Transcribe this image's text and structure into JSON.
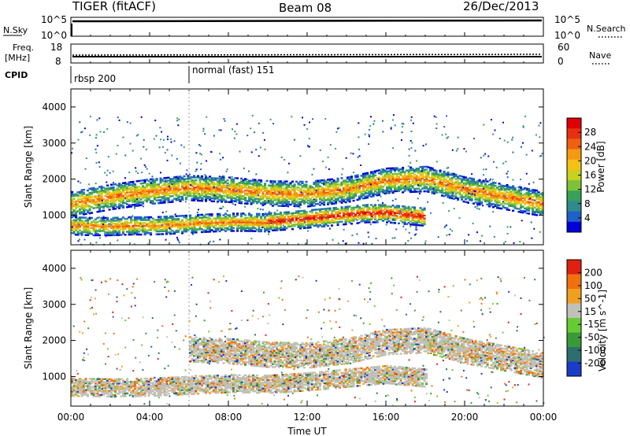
{
  "header": {
    "radar": "TIGER (fitACF)",
    "beam": "Beam 08",
    "date": "26/Dec/2013"
  },
  "strip_labels": {
    "nsky": "N.Sky",
    "nsearch": "N.Search",
    "freq_line1": "Freq.",
    "freq_line2": "[MHz]",
    "nave": "Nave",
    "cpid": "CPID",
    "nsky_ticks": [
      "10^5",
      "10^0"
    ],
    "freq_ticks": [
      "18",
      "8"
    ],
    "nave_ticks": [
      "60",
      "0"
    ]
  },
  "cpid_segments": [
    {
      "label": "rbsp 200",
      "start_hour": 0,
      "end_hour": 6
    },
    {
      "label": "normal (fast) 151",
      "start_hour": 6,
      "end_hour": 24
    }
  ],
  "axes": {
    "xlabel": "Time UT",
    "ylabel": "Slant Range [km]",
    "x_ticks": [
      "00:00",
      "04:00",
      "08:00",
      "12:00",
      "16:00",
      "20:00",
      "00:00"
    ],
    "x_tick_hours": [
      0,
      4,
      8,
      12,
      16,
      20,
      24
    ],
    "y_ticks": [
      1000,
      2000,
      3000,
      4000
    ],
    "xlim": [
      0,
      24
    ],
    "ylim": [
      180,
      4500
    ]
  },
  "chart_data": [
    {
      "type": "heatmap",
      "panel": "power",
      "colorbar_label": "Power [dB]",
      "colorbar_ticks": [
        "28",
        "24",
        "20",
        "16",
        "12",
        "8",
        "4"
      ],
      "colorbar_colors": [
        "#0000d8",
        "#1f5fc8",
        "#2e8b8b",
        "#3aa05a",
        "#7cc23a",
        "#c8d020",
        "#f5c016",
        "#f59a10",
        "#f06010",
        "#e83010",
        "#e00000"
      ],
      "xlim": [
        0,
        24
      ],
      "ylim": [
        180,
        4500
      ],
      "echo_bands": [
        {
          "name": "lower band",
          "x": [
            0,
            1,
            2,
            3,
            4,
            5,
            6,
            7,
            8,
            9,
            10
          ],
          "y": [
            700,
            680,
            680,
            700,
            700,
            720,
            750,
            780,
            800,
            800,
            780
          ],
          "width_km": 250,
          "peak_db": 24
        },
        {
          "name": "upper band",
          "x": [
            0,
            2,
            4,
            6,
            8,
            10,
            12,
            14,
            16,
            18,
            20,
            22,
            24
          ],
          "y": [
            1300,
            1500,
            1650,
            1750,
            1700,
            1600,
            1580,
            1700,
            1950,
            2000,
            1700,
            1500,
            1300
          ],
          "width_km": 350,
          "peak_db": 24
        },
        {
          "name": "strong band",
          "x": [
            10,
            11,
            12,
            13,
            14,
            15,
            16,
            17,
            18
          ],
          "y": [
            820,
            850,
            900,
            950,
            1000,
            1050,
            1050,
            1000,
            950
          ],
          "width_km": 260,
          "peak_db": 30
        }
      ]
    },
    {
      "type": "heatmap",
      "panel": "velocity",
      "colorbar_label": "Velocity [m s^-1]",
      "colorbar_ticks": [
        "200",
        "100",
        "50",
        "15",
        "-15",
        "-50",
        "-100",
        "-200"
      ],
      "colorbar_colors": [
        "#1a3cc8",
        "#2e6e6e",
        "#3a9a3a",
        "#66cc33",
        "#c0c0b8",
        "#f0a020",
        "#f07010",
        "#e02010"
      ],
      "xlim": [
        0,
        24
      ],
      "ylim": [
        180,
        4500
      ],
      "echo_bands": [
        {
          "name": "lower band",
          "x": [
            0,
            2,
            4,
            6,
            8,
            10,
            12,
            14,
            16,
            18
          ],
          "y": [
            700,
            680,
            700,
            750,
            800,
            780,
            850,
            950,
            1050,
            950
          ],
          "width_km": 250,
          "dominant": "ground scatter"
        },
        {
          "name": "upper band",
          "x": [
            6,
            8,
            10,
            12,
            14,
            16,
            18,
            20,
            22,
            24
          ],
          "y": [
            1750,
            1700,
            1600,
            1580,
            1700,
            1950,
            2000,
            1700,
            1500,
            1300
          ],
          "width_km": 350,
          "dominant": "ground scatter"
        }
      ]
    }
  ]
}
